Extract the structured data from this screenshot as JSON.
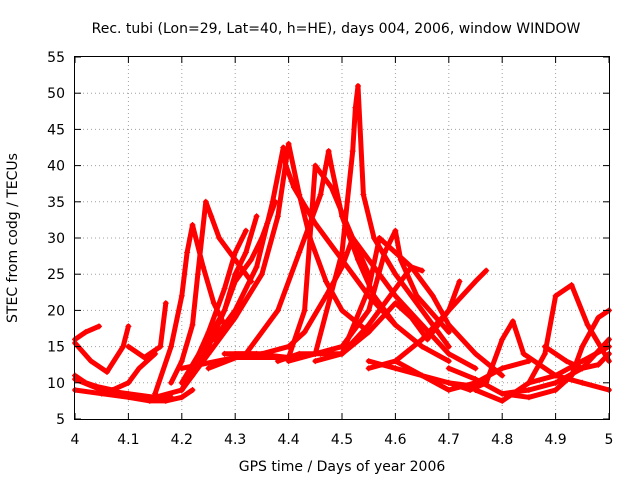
{
  "chart_data": {
    "type": "scatter",
    "title": "Rec. tubi (Lon=29, Lat=40, h=HE), days 004, 2006, window WINDOW",
    "xlabel": "GPS time / Days of year 2006",
    "ylabel": "STEC from codg / TECUs",
    "xlim": [
      4,
      5
    ],
    "ylim": [
      5,
      55
    ],
    "xticks": [
      "4",
      "4.1",
      "4.2",
      "4.3",
      "4.4",
      "4.5",
      "4.6",
      "4.7",
      "4.8",
      "4.9",
      "5"
    ],
    "yticks": [
      "5",
      "10",
      "15",
      "20",
      "25",
      "30",
      "35",
      "40",
      "45",
      "50",
      "55"
    ],
    "grid": true,
    "marker": "+",
    "color": "#ff0000",
    "series": [
      {
        "x": [
          4.0,
          4.02,
          4.045
        ],
        "y": [
          16,
          17,
          17.8
        ]
      },
      {
        "x": [
          4.0,
          4.03,
          4.06,
          4.09,
          4.1
        ],
        "y": [
          15.5,
          13,
          11.5,
          15,
          17.8
        ]
      },
      {
        "x": [
          4.0,
          4.02,
          4.04,
          4.07,
          4.1,
          4.12,
          4.15
        ],
        "y": [
          11,
          10,
          9.5,
          9,
          10,
          12,
          14
        ]
      },
      {
        "x": [
          4.0,
          4.05,
          4.1,
          4.15,
          4.18
        ],
        "y": [
          10.5,
          9,
          8.5,
          8,
          8
        ]
      },
      {
        "x": [
          4.0,
          4.05,
          4.1,
          4.14,
          4.17,
          4.2,
          4.22
        ],
        "y": [
          9,
          8.5,
          8,
          7.5,
          7.5,
          8,
          9
        ]
      },
      {
        "x": [
          4.1,
          4.13,
          4.16,
          4.17
        ],
        "y": [
          15,
          13.5,
          15,
          21
        ]
      },
      {
        "x": [
          4.15,
          4.18,
          4.2,
          4.21,
          4.22,
          4.24,
          4.26,
          4.28
        ],
        "y": [
          8.5,
          15,
          22,
          28,
          31.8,
          26,
          21,
          18
        ]
      },
      {
        "x": [
          4.18,
          4.2,
          4.22,
          4.23,
          4.245,
          4.255,
          4.27,
          4.3,
          4.33
        ],
        "y": [
          10,
          13,
          18,
          25,
          35,
          33,
          30,
          27,
          24
        ]
      },
      {
        "x": [
          4.2,
          4.24,
          4.28,
          4.3,
          4.32,
          4.34
        ],
        "y": [
          10,
          15,
          20,
          25,
          28,
          33
        ]
      },
      {
        "x": [
          4.15,
          4.2,
          4.22,
          4.25,
          4.28,
          4.3,
          4.32
        ],
        "y": [
          8,
          9,
          12,
          17,
          23,
          28,
          31
        ]
      },
      {
        "x": [
          4.22,
          4.25,
          4.28,
          4.3,
          4.33,
          4.35,
          4.36,
          4.375
        ],
        "y": [
          11,
          15,
          20,
          24,
          27,
          30,
          32,
          35
        ]
      },
      {
        "x": [
          4.26,
          4.3,
          4.34,
          4.37,
          4.39,
          4.395,
          4.41,
          4.45,
          4.5,
          4.55,
          4.6,
          4.65,
          4.7
        ],
        "y": [
          16,
          20,
          26,
          35,
          42.5,
          40,
          37,
          32,
          27,
          22,
          18,
          15,
          13
        ]
      },
      {
        "x": [
          4.2,
          4.25,
          4.3,
          4.35,
          4.38,
          4.4,
          4.42,
          4.44,
          4.47,
          4.5,
          4.55
        ],
        "y": [
          9,
          14,
          19,
          25,
          33,
          43,
          36,
          30,
          24,
          20,
          17
        ]
      },
      {
        "x": [
          4.2,
          4.3,
          4.4,
          4.43,
          4.45,
          4.48,
          4.52,
          4.55
        ],
        "y": [
          12,
          13.5,
          13.5,
          20,
          40,
          37,
          30,
          25
        ]
      },
      {
        "x": [
          4.25,
          4.32,
          4.38,
          4.42,
          4.46,
          4.475,
          4.48,
          4.5,
          4.53,
          4.56,
          4.6
        ],
        "y": [
          12,
          14,
          20,
          28,
          36,
          42,
          40,
          33,
          27,
          22,
          18
        ]
      },
      {
        "x": [
          4.28,
          4.34,
          4.4,
          4.45,
          4.5,
          4.51,
          4.52,
          4.525,
          4.53,
          4.54,
          4.56,
          4.6,
          4.65,
          4.7
        ],
        "y": [
          14,
          14,
          13.5,
          14,
          28,
          35,
          42,
          48,
          51,
          36,
          30,
          25,
          20,
          15
        ]
      },
      {
        "x": [
          4.3,
          4.35,
          4.4,
          4.43,
          4.47,
          4.5,
          4.52,
          4.55,
          4.6,
          4.65,
          4.7,
          4.75
        ],
        "y": [
          14,
          14,
          15,
          17,
          22,
          26,
          30,
          27,
          22,
          18,
          14,
          12
        ]
      },
      {
        "x": [
          4.38,
          4.42,
          4.46,
          4.5,
          4.55,
          4.57,
          4.6,
          4.63,
          4.67,
          4.7,
          4.75,
          4.8
        ],
        "y": [
          13,
          14,
          14,
          14,
          23,
          30,
          28,
          26,
          22,
          18,
          14,
          11
        ]
      },
      {
        "x": [
          4.4,
          4.45,
          4.5,
          4.55,
          4.58,
          4.6,
          4.61,
          4.64,
          4.7
        ],
        "y": [
          13,
          14,
          15,
          20,
          28,
          31,
          27,
          22,
          17
        ]
      },
      {
        "x": [
          4.45,
          4.5,
          4.55,
          4.6,
          4.63,
          4.65
        ],
        "y": [
          13,
          14,
          18,
          23,
          26,
          25.5
        ]
      },
      {
        "x": [
          4.5,
          4.55,
          4.6,
          4.63,
          4.66,
          4.7,
          4.72
        ],
        "y": [
          14,
          17,
          21,
          19,
          16,
          20,
          24
        ]
      },
      {
        "x": [
          4.55,
          4.6,
          4.65,
          4.7,
          4.75,
          4.77
        ],
        "y": [
          12,
          13,
          16,
          20,
          24,
          25.5
        ]
      },
      {
        "x": [
          4.55,
          4.6,
          4.65,
          4.7,
          4.75
        ],
        "y": [
          13,
          12,
          11,
          10,
          9.5
        ]
      },
      {
        "x": [
          4.6,
          4.65,
          4.7,
          4.75,
          4.8,
          4.85
        ],
        "y": [
          13,
          11,
          9,
          10,
          12,
          13
        ]
      },
      {
        "x": [
          4.7,
          4.74,
          4.77,
          4.8,
          4.82,
          4.84,
          4.9,
          4.95,
          5.0
        ],
        "y": [
          10,
          9,
          10,
          16,
          18.5,
          14,
          11,
          10,
          9
        ]
      },
      {
        "x": [
          4.75,
          4.8,
          4.85,
          4.88,
          4.9,
          4.93,
          4.96,
          5.0
        ],
        "y": [
          9,
          7.5,
          10,
          14,
          22,
          23.5,
          18,
          13
        ]
      },
      {
        "x": [
          4.7,
          4.75,
          4.8,
          4.85,
          4.9,
          4.95,
          5.0
        ],
        "y": [
          12,
          10.5,
          8.5,
          9,
          10,
          12,
          16
        ]
      },
      {
        "x": [
          4.8,
          4.85,
          4.9,
          4.93,
          4.95,
          4.98,
          5.0
        ],
        "y": [
          8.5,
          8,
          9,
          11,
          15,
          19,
          20
        ]
      },
      {
        "x": [
          4.85,
          4.9,
          4.95,
          5.0
        ],
        "y": [
          10,
          11,
          13,
          15
        ]
      },
      {
        "x": [
          4.88,
          4.92,
          4.95,
          4.98,
          5.0
        ],
        "y": [
          15,
          13,
          12,
          12.5,
          14
        ]
      }
    ]
  }
}
